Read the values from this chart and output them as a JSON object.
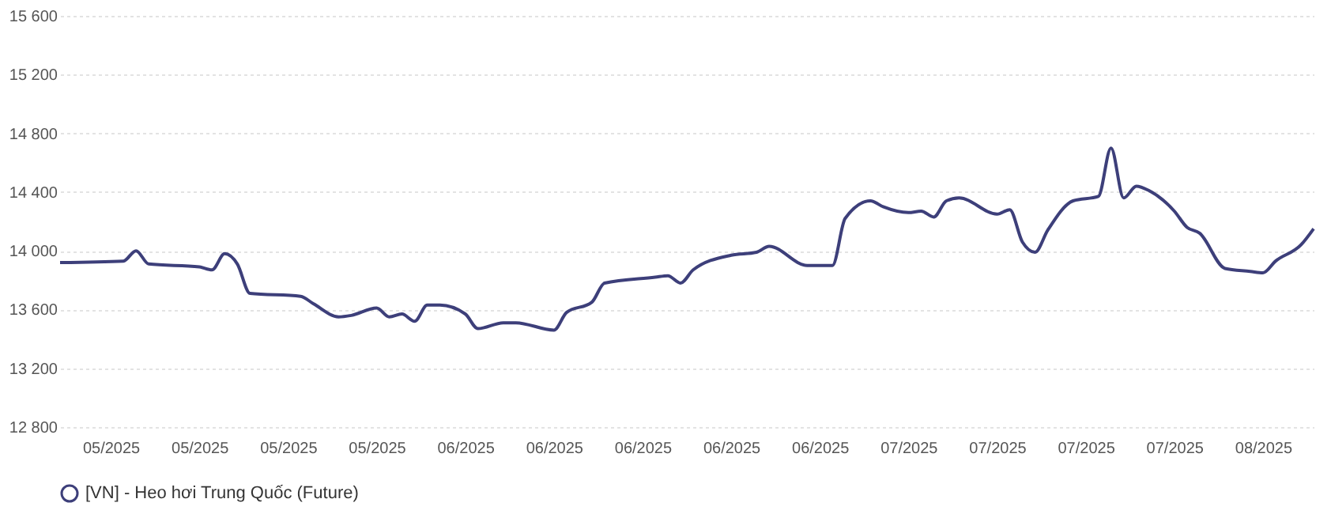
{
  "chart_data": {
    "type": "line",
    "x": [
      "2025-05-01",
      "2025-05-06",
      "2025-05-07",
      "2025-05-08",
      "2025-05-12",
      "2025-05-13",
      "2025-05-14",
      "2025-05-15",
      "2025-05-16",
      "2025-05-20",
      "2025-05-21",
      "2025-05-23",
      "2025-05-24",
      "2025-05-26",
      "2025-05-27",
      "2025-05-28",
      "2025-05-29",
      "2025-05-30",
      "2025-05-31",
      "2025-06-02",
      "2025-06-03",
      "2025-06-05",
      "2025-06-06",
      "2025-06-09",
      "2025-06-10",
      "2025-06-12",
      "2025-06-13",
      "2025-06-17",
      "2025-06-18",
      "2025-06-19",
      "2025-06-20",
      "2025-06-23",
      "2025-06-25",
      "2025-06-26",
      "2025-06-29",
      "2025-07-01",
      "2025-07-02",
      "2025-07-04",
      "2025-07-05",
      "2025-07-07",
      "2025-07-08",
      "2025-07-09",
      "2025-07-10",
      "2025-07-11",
      "2025-07-14",
      "2025-07-15",
      "2025-07-16",
      "2025-07-17",
      "2025-07-18",
      "2025-07-20",
      "2025-07-22",
      "2025-07-23",
      "2025-07-24",
      "2025-07-25",
      "2025-07-26",
      "2025-07-28",
      "2025-07-29",
      "2025-07-30",
      "2025-08-01",
      "2025-08-03",
      "2025-08-04",
      "2025-08-05",
      "2025-08-07",
      "2025-08-08"
    ],
    "series": [
      {
        "name": "[VN] - Heo hơi Trung Quốc (Future)",
        "color": "#3d3f7a",
        "values": [
          13920,
          13930,
          14000,
          13910,
          13890,
          13870,
          13980,
          13910,
          13710,
          13690,
          13640,
          13550,
          13560,
          13610,
          13550,
          13570,
          13520,
          13630,
          13630,
          13570,
          13470,
          13510,
          13510,
          13460,
          13580,
          13650,
          13780,
          13820,
          13830,
          13780,
          13870,
          13970,
          13990,
          14030,
          13900,
          13900,
          14220,
          14340,
          14300,
          14260,
          14270,
          14230,
          14340,
          14360,
          14250,
          14280,
          14060,
          13990,
          14140,
          14340,
          14370,
          14700,
          14360,
          14440,
          14410,
          14270,
          14160,
          14120,
          13880,
          13860,
          13850,
          13930,
          14040,
          14150
        ]
      }
    ],
    "xlim": [
      "2025-05-01",
      "2025-08-08"
    ],
    "xticks": [
      {
        "value": "2025-05-05",
        "label": "05/2025"
      },
      {
        "value": "2025-05-12",
        "label": "05/2025"
      },
      {
        "value": "2025-05-19",
        "label": "05/2025"
      },
      {
        "value": "2025-05-26",
        "label": "05/2025"
      },
      {
        "value": "2025-06-02",
        "label": "06/2025"
      },
      {
        "value": "2025-06-09",
        "label": "06/2025"
      },
      {
        "value": "2025-06-16",
        "label": "06/2025"
      },
      {
        "value": "2025-06-23",
        "label": "06/2025"
      },
      {
        "value": "2025-06-30",
        "label": "06/2025"
      },
      {
        "value": "2025-07-07",
        "label": "07/2025"
      },
      {
        "value": "2025-07-14",
        "label": "07/2025"
      },
      {
        "value": "2025-07-21",
        "label": "07/2025"
      },
      {
        "value": "2025-07-28",
        "label": "07/2025"
      },
      {
        "value": "2025-08-04",
        "label": "08/2025"
      }
    ],
    "ylim": [
      12800,
      15600
    ],
    "yticks": [
      {
        "value": 12800,
        "label": "12 800"
      },
      {
        "value": 13200,
        "label": "13 200"
      },
      {
        "value": 13600,
        "label": "13 600"
      },
      {
        "value": 14000,
        "label": "14 000"
      },
      {
        "value": 14400,
        "label": "14 400"
      },
      {
        "value": 14800,
        "label": "14 800"
      },
      {
        "value": 15200,
        "label": "15 200"
      },
      {
        "value": 15600,
        "label": "15 600"
      }
    ],
    "grid": "y",
    "legend": "bottom",
    "marker": "none",
    "line_style": "solid"
  }
}
